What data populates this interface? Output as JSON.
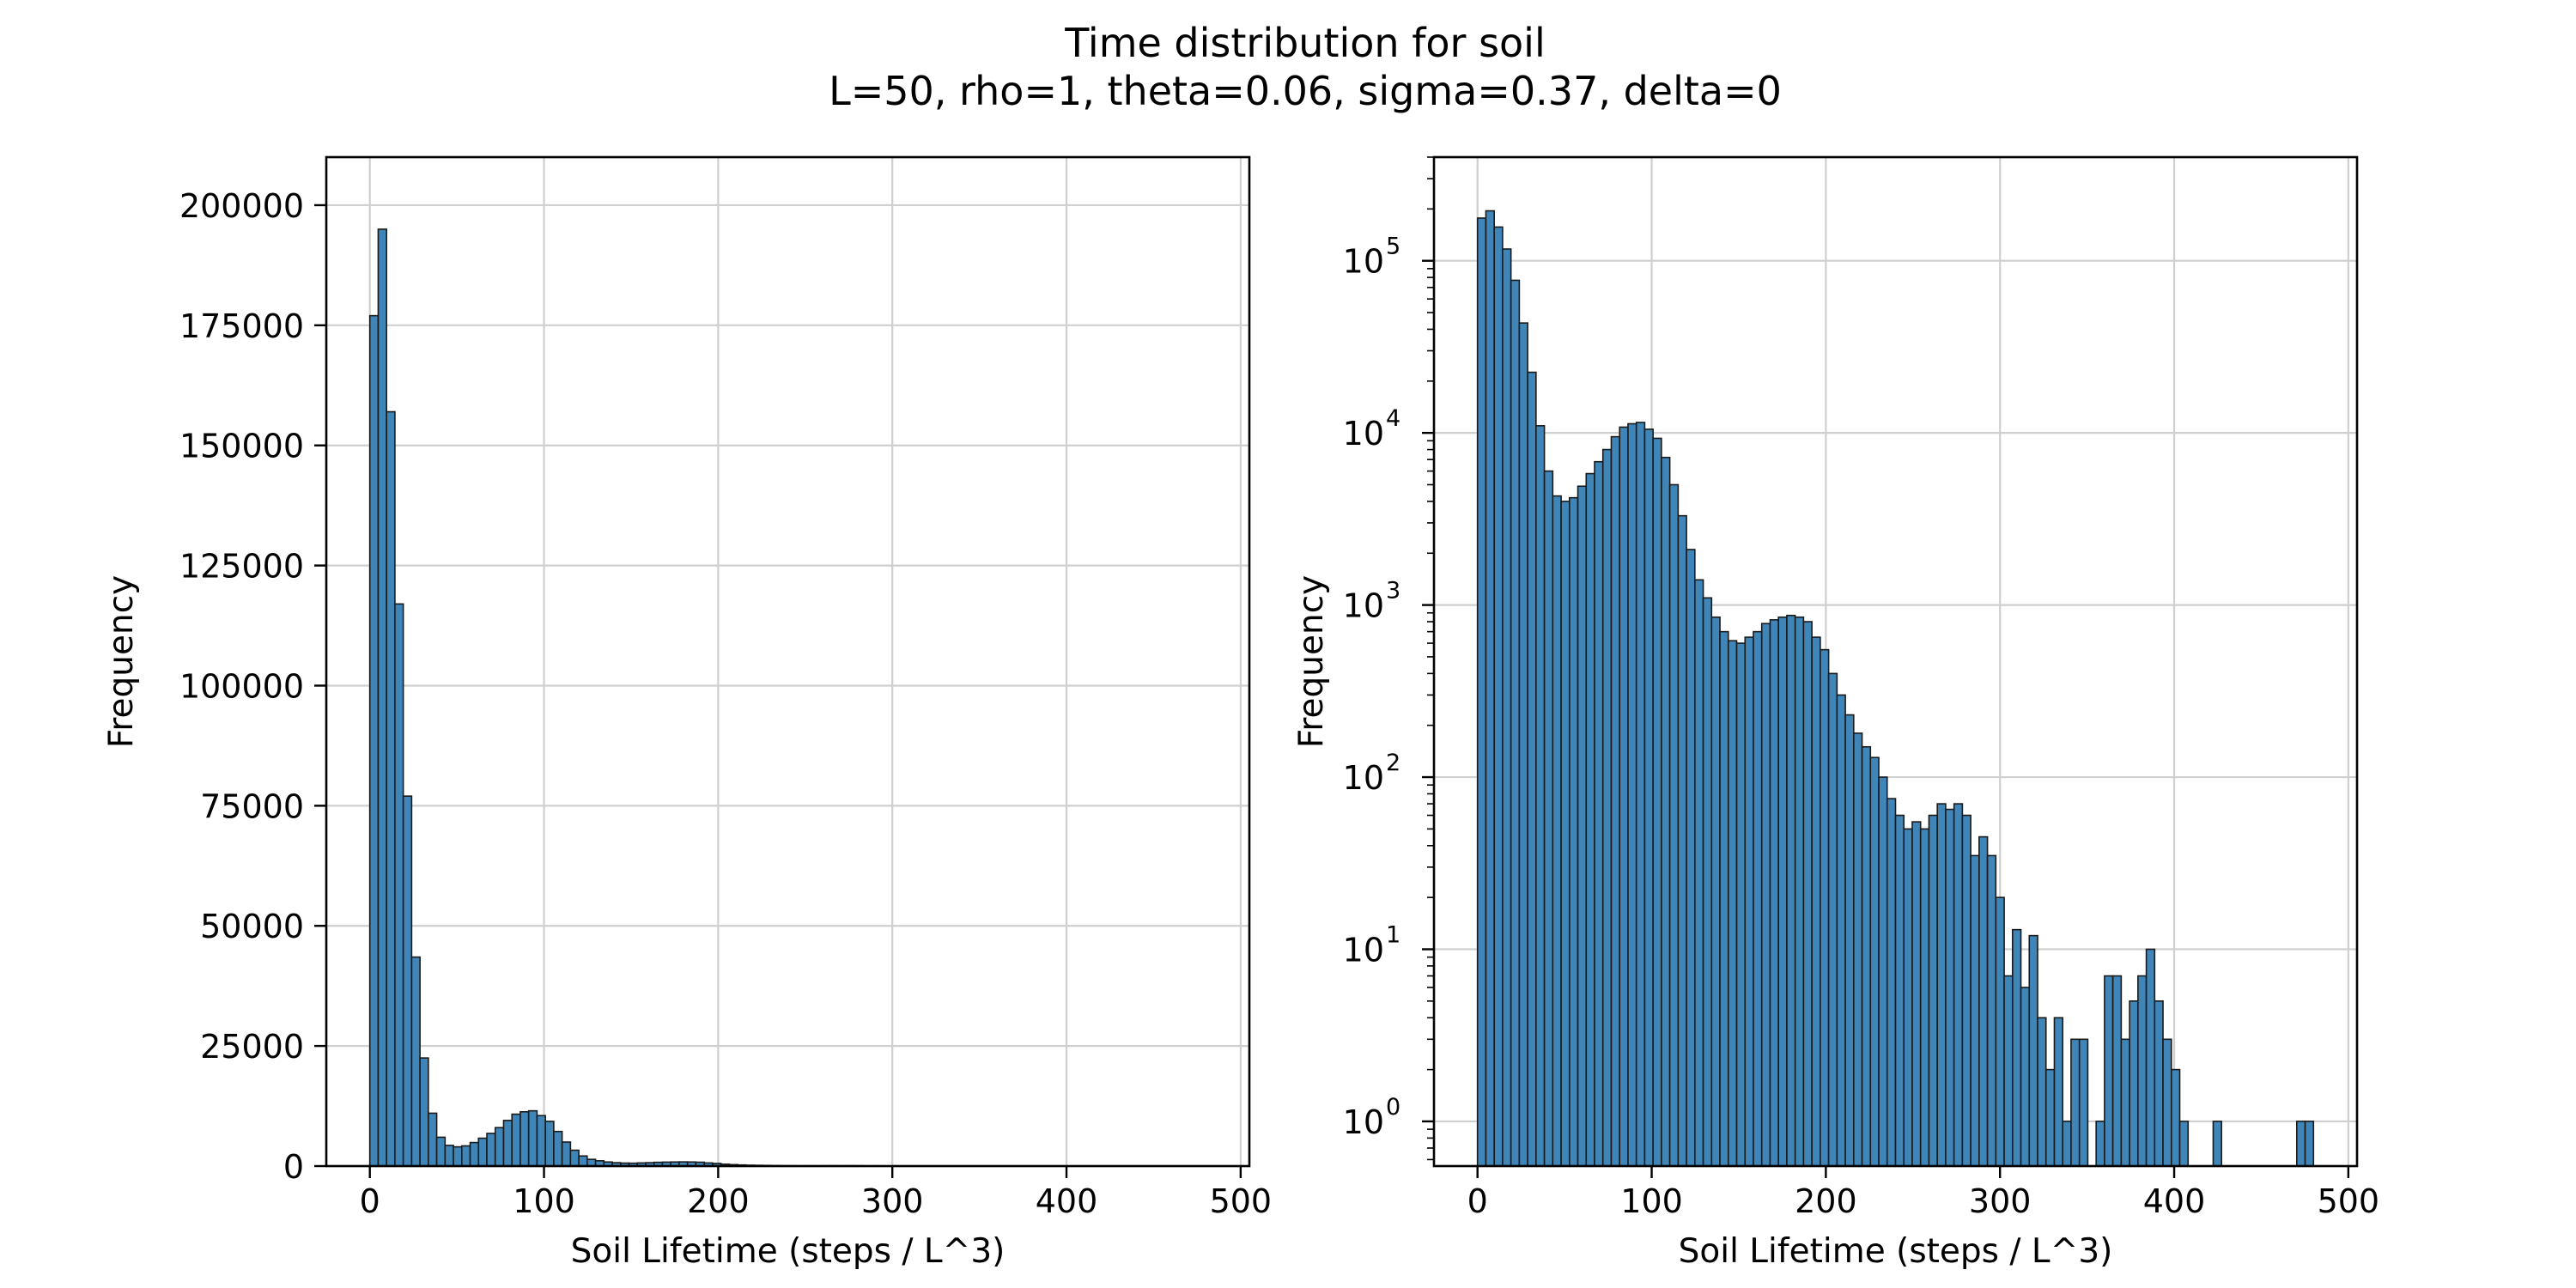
{
  "chart_data": {
    "title": "Time distribution for soil",
    "subtitle": "L=50, rho=1, theta=0.06, sigma=0.37, delta=0",
    "type": "bar",
    "grid": true,
    "colors": {
      "bar_fill": "#3f85b8",
      "bar_edge": "#1a1a1a",
      "grid": "#cfcfcf"
    },
    "x_units_per_bin": 4.8,
    "panels": [
      {
        "name": "linear-panel",
        "type": "bar",
        "yscale": "linear",
        "xlabel": "Soil Lifetime (steps / L^3)",
        "ylabel": "Frequency",
        "xlim": [
          -25,
          505
        ],
        "ylim": [
          0,
          210000
        ],
        "xticks": [
          0,
          100,
          200,
          300,
          400,
          500
        ],
        "yticks": [
          0,
          25000,
          50000,
          75000,
          100000,
          125000,
          150000,
          175000,
          200000
        ]
      },
      {
        "name": "log-panel",
        "type": "bar",
        "yscale": "log",
        "xlabel": "Soil Lifetime (steps / L^3)",
        "ylabel": "Frequency",
        "xlim": [
          -25,
          505
        ],
        "ylim": [
          0.55,
          400000
        ],
        "xticks": [
          0,
          100,
          200,
          300,
          400,
          500
        ],
        "yticks": [
          1,
          10,
          100,
          1000,
          10000,
          100000
        ],
        "ytick_labels": [
          {
            "base": "10",
            "exp": "0"
          },
          {
            "base": "10",
            "exp": "1"
          },
          {
            "base": "10",
            "exp": "2"
          },
          {
            "base": "10",
            "exp": "3"
          },
          {
            "base": "10",
            "exp": "4"
          },
          {
            "base": "10",
            "exp": "5"
          }
        ]
      }
    ],
    "bins": [
      {
        "x": 0.0,
        "y": 177000
      },
      {
        "x": 4.8,
        "y": 195000
      },
      {
        "x": 9.6,
        "y": 157000
      },
      {
        "x": 14.4,
        "y": 117000
      },
      {
        "x": 19.2,
        "y": 77000
      },
      {
        "x": 24.0,
        "y": 43500
      },
      {
        "x": 28.8,
        "y": 22500
      },
      {
        "x": 33.6,
        "y": 11000
      },
      {
        "x": 38.4,
        "y": 6000
      },
      {
        "x": 43.2,
        "y": 4300
      },
      {
        "x": 48.0,
        "y": 4000
      },
      {
        "x": 52.8,
        "y": 4200
      },
      {
        "x": 57.6,
        "y": 4900
      },
      {
        "x": 62.4,
        "y": 5800
      },
      {
        "x": 67.2,
        "y": 6800
      },
      {
        "x": 72.0,
        "y": 8000
      },
      {
        "x": 76.8,
        "y": 9500
      },
      {
        "x": 81.6,
        "y": 10800
      },
      {
        "x": 86.4,
        "y": 11300
      },
      {
        "x": 91.2,
        "y": 11500
      },
      {
        "x": 96.0,
        "y": 10500
      },
      {
        "x": 100.8,
        "y": 9300
      },
      {
        "x": 105.6,
        "y": 7200
      },
      {
        "x": 110.4,
        "y": 5000
      },
      {
        "x": 115.2,
        "y": 3300
      },
      {
        "x": 120.0,
        "y": 2100
      },
      {
        "x": 124.8,
        "y": 1400
      },
      {
        "x": 129.6,
        "y": 1100
      },
      {
        "x": 134.4,
        "y": 850
      },
      {
        "x": 139.2,
        "y": 700
      },
      {
        "x": 144.0,
        "y": 620
      },
      {
        "x": 148.8,
        "y": 600
      },
      {
        "x": 153.6,
        "y": 650
      },
      {
        "x": 158.4,
        "y": 700
      },
      {
        "x": 163.2,
        "y": 780
      },
      {
        "x": 168.0,
        "y": 820
      },
      {
        "x": 172.8,
        "y": 850
      },
      {
        "x": 177.6,
        "y": 870
      },
      {
        "x": 182.4,
        "y": 850
      },
      {
        "x": 187.2,
        "y": 800
      },
      {
        "x": 192.0,
        "y": 650
      },
      {
        "x": 196.8,
        "y": 550
      },
      {
        "x": 201.6,
        "y": 400
      },
      {
        "x": 206.4,
        "y": 300
      },
      {
        "x": 211.2,
        "y": 230
      },
      {
        "x": 216.0,
        "y": 180
      },
      {
        "x": 220.8,
        "y": 150
      },
      {
        "x": 225.6,
        "y": 130
      },
      {
        "x": 230.4,
        "y": 100
      },
      {
        "x": 235.2,
        "y": 75
      },
      {
        "x": 240.0,
        "y": 60
      },
      {
        "x": 244.8,
        "y": 50
      },
      {
        "x": 249.6,
        "y": 55
      },
      {
        "x": 254.4,
        "y": 50
      },
      {
        "x": 259.2,
        "y": 60
      },
      {
        "x": 264.0,
        "y": 70
      },
      {
        "x": 268.8,
        "y": 65
      },
      {
        "x": 273.6,
        "y": 70
      },
      {
        "x": 278.4,
        "y": 60
      },
      {
        "x": 283.2,
        "y": 35
      },
      {
        "x": 288.0,
        "y": 45
      },
      {
        "x": 292.8,
        "y": 35
      },
      {
        "x": 297.6,
        "y": 20
      },
      {
        "x": 302.4,
        "y": 7
      },
      {
        "x": 307.2,
        "y": 13
      },
      {
        "x": 312.0,
        "y": 6
      },
      {
        "x": 316.8,
        "y": 12
      },
      {
        "x": 321.6,
        "y": 4
      },
      {
        "x": 326.4,
        "y": 2
      },
      {
        "x": 331.2,
        "y": 4
      },
      {
        "x": 336.0,
        "y": 1
      },
      {
        "x": 340.8,
        "y": 3
      },
      {
        "x": 345.6,
        "y": 3
      },
      {
        "x": 350.4,
        "y": 0
      },
      {
        "x": 355.2,
        "y": 1
      },
      {
        "x": 360.0,
        "y": 7
      },
      {
        "x": 364.8,
        "y": 7
      },
      {
        "x": 369.6,
        "y": 3
      },
      {
        "x": 374.4,
        "y": 5
      },
      {
        "x": 379.2,
        "y": 7
      },
      {
        "x": 384.0,
        "y": 10
      },
      {
        "x": 388.8,
        "y": 5
      },
      {
        "x": 393.6,
        "y": 3
      },
      {
        "x": 398.4,
        "y": 2
      },
      {
        "x": 403.2,
        "y": 1
      },
      {
        "x": 422.4,
        "y": 1
      },
      {
        "x": 470.4,
        "y": 1
      },
      {
        "x": 475.2,
        "y": 1
      }
    ]
  }
}
